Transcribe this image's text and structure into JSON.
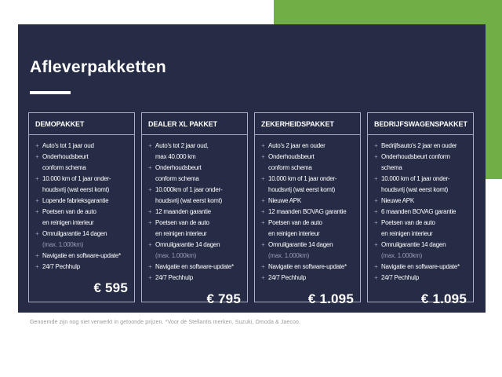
{
  "title": "Afleverpakketten",
  "footnote": "Genoemde zijn nog niet verwerkt in getoonde prijzen. *Voor de Stellantis merken, Suzuki, Omoda & Jaecoo.",
  "bullet_glyph": "+",
  "colors": {
    "panel_navy": "#262c46",
    "accent_green": "#6faf46",
    "card_border": "#a8adbf",
    "muted_text": "#989eb2",
    "primary_text": "#ffffff",
    "footnote_text": "#9a9a9a"
  },
  "cards": [
    {
      "name": "DEMOPAKKET",
      "price": "€ 595",
      "items": [
        {
          "lines": [
            {
              "text": "Auto's tot 1 jaar oud",
              "muted": false
            }
          ]
        },
        {
          "lines": [
            {
              "text": "Onderhoudsbeurt",
              "muted": false
            },
            {
              "text": "conform schema",
              "muted": false
            }
          ]
        },
        {
          "lines": [
            {
              "text": "10.000 km of 1 jaar onder-",
              "muted": false
            },
            {
              "text": "houdsvrij (wat eerst komt)",
              "muted": false
            }
          ]
        },
        {
          "lines": [
            {
              "text": "Lopende fabrieksgarantie",
              "muted": false
            }
          ]
        },
        {
          "lines": [
            {
              "text": "Poetsen van de auto",
              "muted": false
            },
            {
              "text": "en reinigen interieur",
              "muted": false
            }
          ]
        },
        {
          "lines": [
            {
              "text": "Omruilgarantie 14 dagen",
              "muted": false
            },
            {
              "text": "(max. 1.000km)",
              "muted": true
            }
          ]
        },
        {
          "lines": [
            {
              "text": "Navigatie en software-update*",
              "muted": false
            }
          ]
        },
        {
          "lines": [
            {
              "text": "24/7 Pechhulp",
              "muted": false
            }
          ]
        }
      ]
    },
    {
      "name": "DEALER XL PAKKET",
      "price": "€ 795",
      "items": [
        {
          "lines": [
            {
              "text": "Auto's tot 2 jaar oud,",
              "muted": false
            },
            {
              "text": "max 40.000 km",
              "muted": false
            }
          ]
        },
        {
          "lines": [
            {
              "text": "Onderhoudsbeurt",
              "muted": false
            },
            {
              "text": "conform schema",
              "muted": false
            }
          ]
        },
        {
          "lines": [
            {
              "text": "10.000km of 1 jaar onder-",
              "muted": false
            },
            {
              "text": "houdsvrij (wat eerst komt)",
              "muted": false
            }
          ]
        },
        {
          "lines": [
            {
              "text": "12 maanden garantie",
              "muted": false
            }
          ]
        },
        {
          "lines": [
            {
              "text": "Poetsen van de auto",
              "muted": false
            },
            {
              "text": "en reinigen interieur",
              "muted": false
            }
          ]
        },
        {
          "lines": [
            {
              "text": "Omruilgarantie 14 dagen",
              "muted": false
            },
            {
              "text": "(max. 1.000km)",
              "muted": true
            }
          ]
        },
        {
          "lines": [
            {
              "text": "Navigatie en software-update*",
              "muted": false
            }
          ]
        },
        {
          "lines": [
            {
              "text": "24/7 Pechhulp",
              "muted": false
            }
          ]
        }
      ]
    },
    {
      "name": "ZEKERHEIDSPAKKET",
      "price": "€ 1.095",
      "items": [
        {
          "lines": [
            {
              "text": "Auto's 2 jaar en ouder",
              "muted": false
            }
          ]
        },
        {
          "lines": [
            {
              "text": "Onderhoudsbeurt",
              "muted": false
            },
            {
              "text": "conform schema",
              "muted": false
            }
          ]
        },
        {
          "lines": [
            {
              "text": "10.000 km of 1 jaar onder-",
              "muted": false
            },
            {
              "text": "houdsvrij (wat eerst komt)",
              "muted": false
            }
          ]
        },
        {
          "lines": [
            {
              "text": "Nieuwe APK",
              "muted": false
            }
          ]
        },
        {
          "lines": [
            {
              "text": "12 maanden BOVAG garantie",
              "muted": false
            }
          ]
        },
        {
          "lines": [
            {
              "text": "Poetsen van de auto",
              "muted": false
            },
            {
              "text": "en reinigen interieur",
              "muted": false
            }
          ]
        },
        {
          "lines": [
            {
              "text": "Omruilgarantie 14 dagen",
              "muted": false
            },
            {
              "text": "(max. 1.000km)",
              "muted": true
            }
          ]
        },
        {
          "lines": [
            {
              "text": "Navigatie en software-update*",
              "muted": false
            }
          ]
        },
        {
          "lines": [
            {
              "text": "24/7 Pechhulp",
              "muted": false
            }
          ]
        }
      ]
    },
    {
      "name": "BEDRIJFSWAGENSPAKKET",
      "price": "€ 1.095",
      "items": [
        {
          "lines": [
            {
              "text": "Bedrijfsauto's 2 jaar en ouder",
              "muted": false
            }
          ]
        },
        {
          "lines": [
            {
              "text": "Onderhoudsbeurt conform",
              "muted": false
            },
            {
              "text": "schema",
              "muted": false
            }
          ]
        },
        {
          "lines": [
            {
              "text": "10.000 km of 1 jaar onder-",
              "muted": false
            },
            {
              "text": "houdsvrij (wat eerst komt)",
              "muted": false
            }
          ]
        },
        {
          "lines": [
            {
              "text": "Nieuwe APK",
              "muted": false
            }
          ]
        },
        {
          "lines": [
            {
              "text": "6 maanden BOVAG garantie",
              "muted": false
            }
          ]
        },
        {
          "lines": [
            {
              "text": "Poetsen van de auto",
              "muted": false
            },
            {
              "text": "en reinigen interieur",
              "muted": false
            }
          ]
        },
        {
          "lines": [
            {
              "text": "Omruilgarantie 14 dagen",
              "muted": false
            },
            {
              "text": "(max. 1.000km)",
              "muted": true
            }
          ]
        },
        {
          "lines": [
            {
              "text": "Navigatie en software-update*",
              "muted": false
            }
          ]
        },
        {
          "lines": [
            {
              "text": "24/7 Pechhulp",
              "muted": false
            }
          ]
        }
      ]
    }
  ]
}
